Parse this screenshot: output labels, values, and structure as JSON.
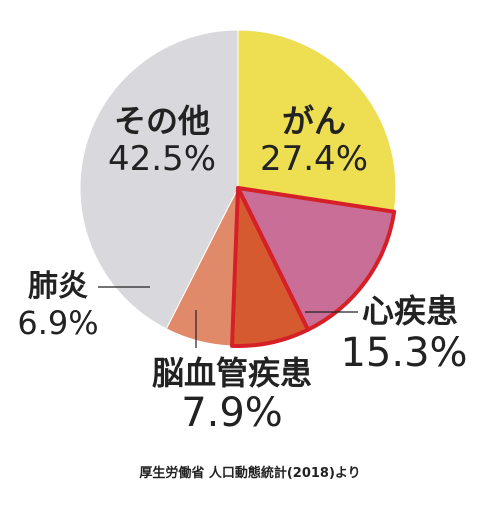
{
  "chart_data": {
    "type": "pie",
    "slices": [
      {
        "label": "がん",
        "value": 27.4,
        "value_label": "27.4%",
        "color": "#eedf52",
        "highlight": false
      },
      {
        "label": "心疾患",
        "value": 15.3,
        "value_label": "15.3%",
        "color": "#c96e96",
        "highlight": true
      },
      {
        "label": "脳血管疾患",
        "value": 7.9,
        "value_label": "7.9%",
        "color": "#d65a2f",
        "highlight": true
      },
      {
        "label": "肺炎",
        "value": 6.9,
        "value_label": "6.9%",
        "color": "#e08a6a",
        "highlight": false
      },
      {
        "label": "その他",
        "value": 42.5,
        "value_label": "42.5%",
        "color": "#d9d9dd",
        "highlight": false
      }
    ],
    "highlight_color": "#d62027"
  },
  "source": "厚生労働省 人口動態統計(2018)より"
}
